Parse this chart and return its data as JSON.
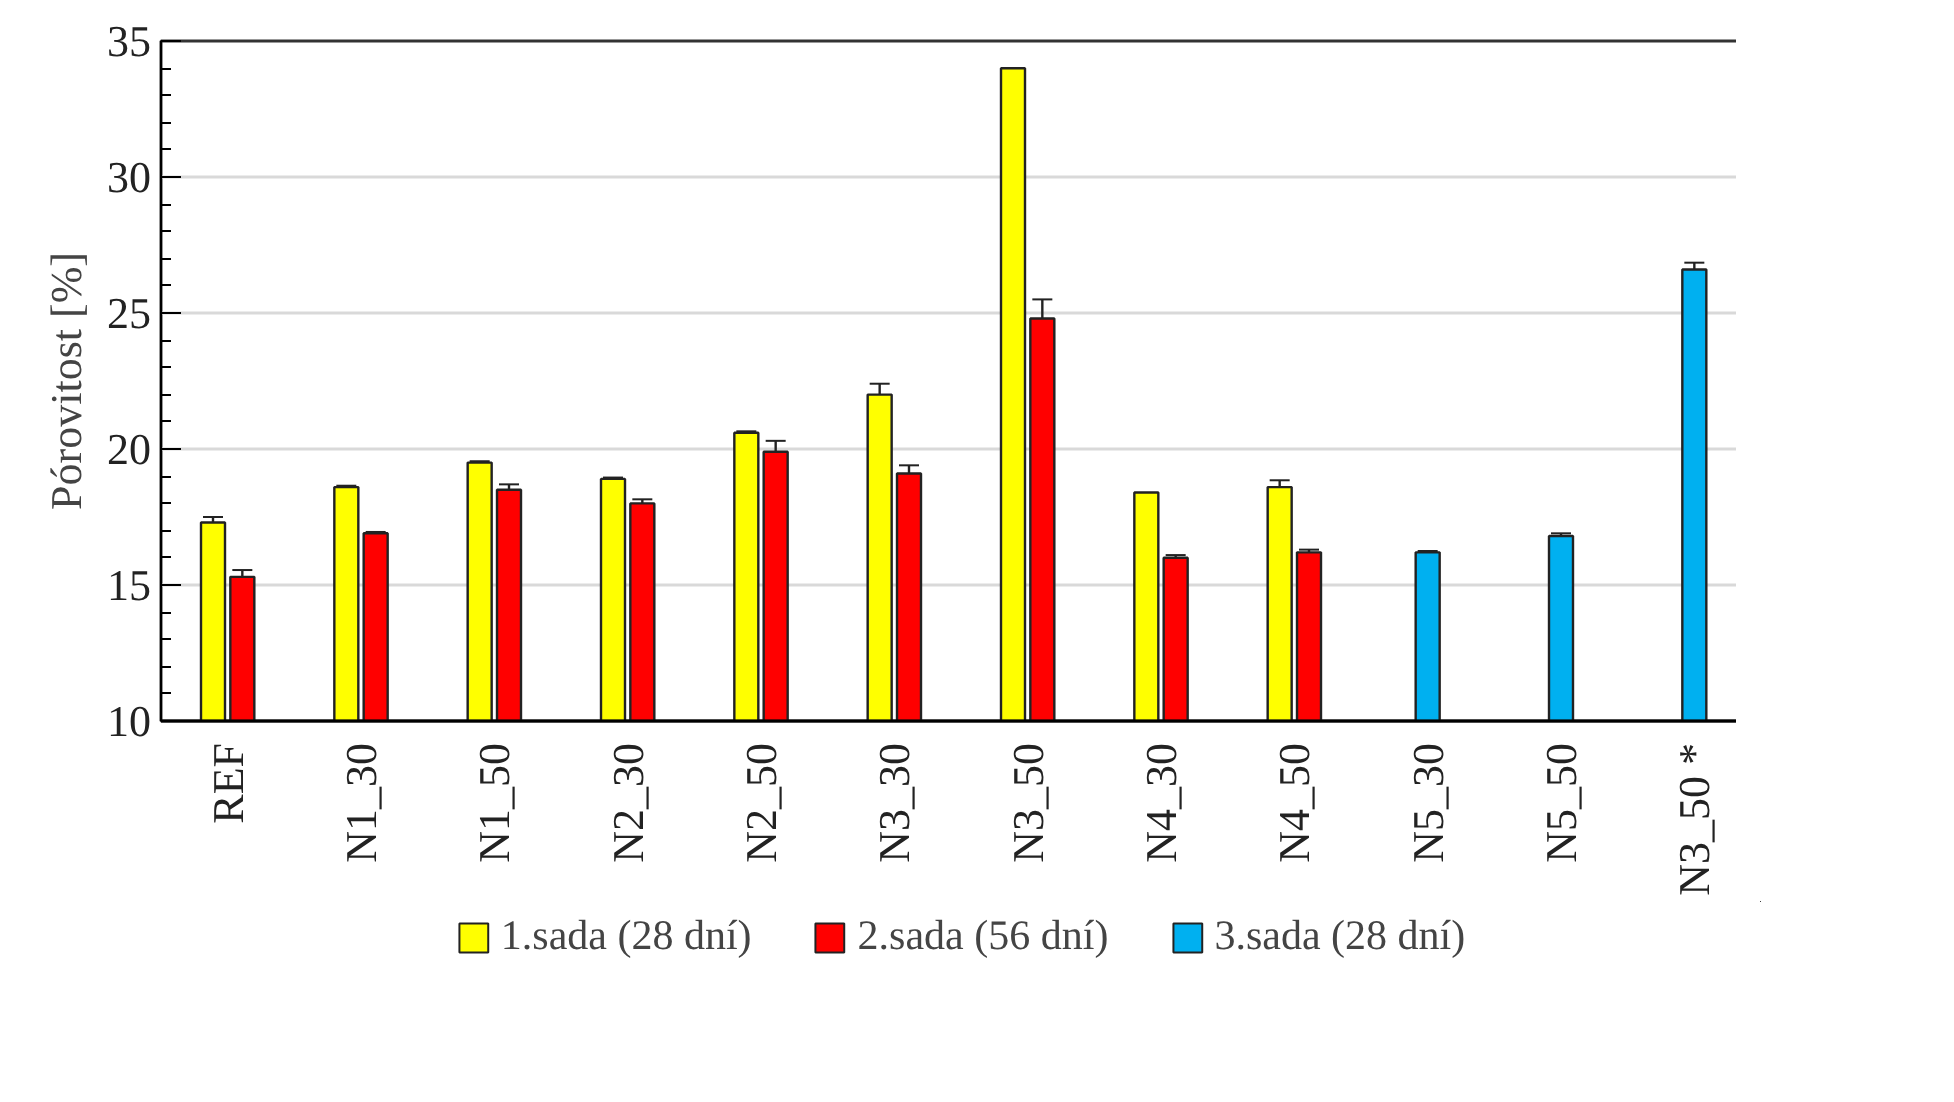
{
  "chart_data": {
    "type": "bar",
    "ylabel": "Pórovitost [%]",
    "categories": [
      "REF",
      "N1_30",
      "N1_50",
      "N2_30",
      "N2_50",
      "N3_30",
      "N3_50",
      "N4_30",
      "N4_50",
      "N5_30",
      "N5_50",
      "N3_50 *"
    ],
    "series": [
      {
        "name": "1.sada (28 dní)",
        "color": "#ffff00",
        "values": [
          17.3,
          18.6,
          19.5,
          18.9,
          20.6,
          22.0,
          34.0,
          18.4,
          18.6,
          null,
          null,
          null
        ],
        "errors": [
          0.2,
          0.05,
          0.05,
          0.05,
          0.05,
          0.4,
          null,
          null,
          0.25,
          null,
          null,
          null
        ]
      },
      {
        "name": "2.sada (56 dní)",
        "color": "#ff0000",
        "values": [
          15.3,
          16.9,
          18.5,
          18.0,
          19.9,
          19.1,
          24.8,
          16.0,
          16.2,
          null,
          null,
          null
        ],
        "errors": [
          0.25,
          0.05,
          0.2,
          0.15,
          0.4,
          0.3,
          0.7,
          0.1,
          0.1,
          null,
          null,
          null
        ]
      },
      {
        "name": "3.sada (28 dní)",
        "color": "#00b0f0",
        "values": [
          null,
          null,
          null,
          null,
          null,
          null,
          null,
          null,
          null,
          16.2,
          16.8,
          26.6
        ],
        "errors": [
          null,
          null,
          null,
          null,
          null,
          null,
          null,
          null,
          null,
          0.05,
          0.1,
          0.25
        ]
      }
    ],
    "ylim": [
      10,
      35
    ],
    "yticks": [
      10,
      15,
      20,
      25,
      30,
      35
    ],
    "grid": "y",
    "legend": "bottom"
  }
}
